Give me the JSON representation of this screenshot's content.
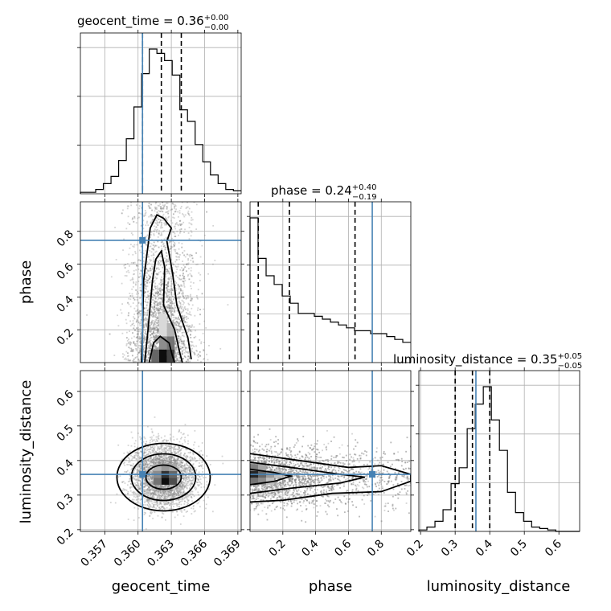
{
  "chart_data": {
    "type": "corner",
    "parameters": [
      "geocent_time",
      "phase",
      "luminosity_distance"
    ],
    "truths": {
      "geocent_time": 0.3604,
      "phase": 0.745,
      "luminosity_distance": 0.36
    },
    "titles": [
      {
        "name": "geocent_time",
        "value": "0.36",
        "plus": "+0.00",
        "minus": "−0.00"
      },
      {
        "name": "phase",
        "value": "0.24",
        "plus": "+0.40",
        "minus": "−0.19"
      },
      {
        "name": "luminosity_distance",
        "value": "0.35",
        "plus": "+0.05",
        "minus": "−0.05"
      }
    ],
    "ranges": {
      "geocent_time": [
        0.3548,
        0.3693
      ],
      "phase": [
        0.0,
        0.98
      ],
      "luminosity_distance": [
        0.195,
        0.66
      ]
    },
    "ticks": {
      "geocent_time": [
        "0.357",
        "0.360",
        "0.363",
        "0.366",
        "0.369"
      ],
      "phase_x": [
        "0.2",
        "0.4",
        "0.6",
        "0.8"
      ],
      "phase_y": [
        "0.2",
        "0.4",
        "0.6",
        "0.8"
      ],
      "luminosity_distance_x": [
        "0.2",
        "0.3",
        "0.4",
        "0.5",
        "0.6"
      ],
      "luminosity_distance_y": [
        "0.2",
        "0.3",
        "0.4",
        "0.5",
        "0.6"
      ]
    },
    "quantiles": {
      "geocent_time": [
        0.3604,
        0.3621,
        0.3639
      ],
      "phase": [
        0.05,
        0.24,
        0.64
      ],
      "luminosity_distance": [
        0.3,
        0.35,
        0.4
      ]
    },
    "histograms": {
      "geocent_time": {
        "edges_start": 0.3548,
        "bin_width": 0.00069,
        "counts": [
          0.01,
          0.01,
          0.03,
          0.07,
          0.12,
          0.23,
          0.38,
          0.6,
          0.83,
          1.0,
          0.97,
          0.92,
          0.82,
          0.58,
          0.5,
          0.34,
          0.22,
          0.13,
          0.07,
          0.03,
          0.02
        ]
      },
      "phase": {
        "edges_start": 0.0,
        "bin_width": 0.049,
        "counts": [
          1.0,
          0.72,
          0.6,
          0.54,
          0.46,
          0.41,
          0.34,
          0.34,
          0.32,
          0.3,
          0.28,
          0.26,
          0.24,
          0.22,
          0.22,
          0.2,
          0.2,
          0.18,
          0.16,
          0.14
        ]
      },
      "luminosity_distance": {
        "edges_start": 0.195,
        "bin_width": 0.0233,
        "counts": [
          0.01,
          0.03,
          0.07,
          0.15,
          0.33,
          0.44,
          0.71,
          0.88,
          1.0,
          0.77,
          0.56,
          0.27,
          0.13,
          0.07,
          0.03,
          0.02,
          0.01,
          0.0,
          0.0,
          0.0
        ]
      }
    }
  }
}
